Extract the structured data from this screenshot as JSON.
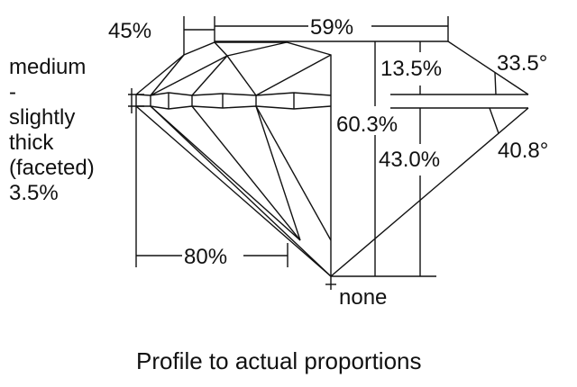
{
  "labels": {
    "crown_height": "45%",
    "table": "59%",
    "crown_pct": "13.5%",
    "crown_angle": "33.5°",
    "total_depth": "60.3%",
    "pavilion_depth": "43.0%",
    "pavilion_angle": "40.8°",
    "girdle_lines": [
      "medium",
      "-",
      "slightly",
      "thick",
      "(faceted)",
      "3.5%"
    ],
    "lower_half": "80%",
    "culet": "none"
  },
  "caption": "Profile to actual proportions"
}
